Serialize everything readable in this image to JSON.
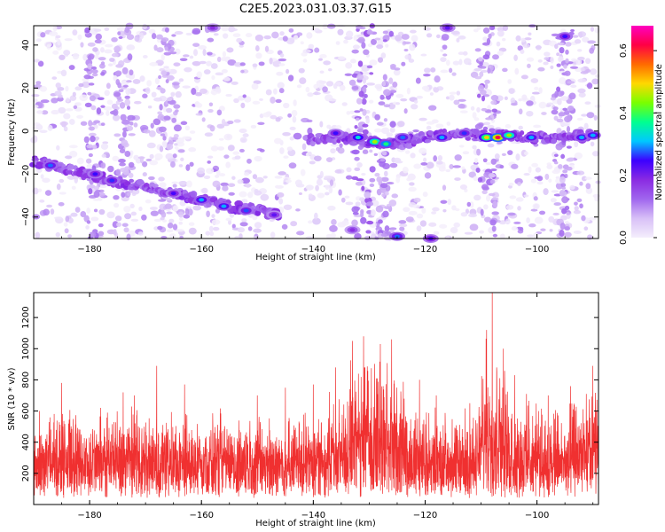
{
  "title": "C2E5.2023.031.03.37.G15",
  "chart_data": [
    {
      "type": "heatmap",
      "xlabel": "Height of straight line (km)",
      "ylabel": "Frequency (Hz)",
      "xlim": [
        -190,
        -89
      ],
      "ylim": [
        -50,
        49
      ],
      "xticks": [
        -180,
        -160,
        -140,
        -120,
        -100
      ],
      "yticks": [
        -40,
        -20,
        0,
        20,
        40
      ],
      "colorbar": {
        "label": "Normalized spectral amplitude",
        "range": [
          0,
          0.68
        ],
        "ticks": [
          0.0,
          0.2,
          0.4,
          0.6
        ],
        "tick_labels": [
          "0.0",
          "0.2",
          "0.4",
          "0.6"
        ],
        "colormap": [
          "#f4eefc",
          "#d8c0f7",
          "#a066ee",
          "#8a2be2",
          "#3c00ff",
          "#00c8ff",
          "#00ff90",
          "#7aff00",
          "#ffd800",
          "#ff6a00",
          "#ff0044",
          "#ff00c0"
        ]
      },
      "ridge": [
        {
          "x": -190,
          "y": -14
        },
        {
          "x": -185,
          "y": -17
        },
        {
          "x": -180,
          "y": -20
        },
        {
          "x": -175,
          "y": -24
        },
        {
          "x": -170,
          "y": -26
        },
        {
          "x": -165,
          "y": -29
        },
        {
          "x": -160,
          "y": -32
        },
        {
          "x": -155,
          "y": -35
        },
        {
          "x": -150,
          "y": -37
        },
        {
          "x": -146,
          "y": -39
        },
        {
          "x": -141,
          "y": -4
        },
        {
          "x": -135,
          "y": -3
        },
        {
          "x": -130,
          "y": -5
        },
        {
          "x": -125,
          "y": -6
        },
        {
          "x": -120,
          "y": -3
        },
        {
          "x": -115,
          "y": -1
        },
        {
          "x": -110,
          "y": -2
        },
        {
          "x": -105,
          "y": -2
        },
        {
          "x": -100,
          "y": -3
        },
        {
          "x": -95,
          "y": -3
        },
        {
          "x": -90,
          "y": -2
        }
      ],
      "hot_spots": [
        {
          "x": -187,
          "y": -16,
          "a": 0.28
        },
        {
          "x": -179,
          "y": -20,
          "a": 0.25
        },
        {
          "x": -176,
          "y": -23,
          "a": 0.26
        },
        {
          "x": -165,
          "y": -29,
          "a": 0.24
        },
        {
          "x": -160,
          "y": -32,
          "a": 0.3
        },
        {
          "x": -156,
          "y": -35,
          "a": 0.3
        },
        {
          "x": -152,
          "y": -37,
          "a": 0.27
        },
        {
          "x": -147,
          "y": -39,
          "a": 0.22
        },
        {
          "x": -136,
          "y": -1,
          "a": 0.25
        },
        {
          "x": -132,
          "y": -3,
          "a": 0.33
        },
        {
          "x": -129,
          "y": -5,
          "a": 0.45
        },
        {
          "x": -127,
          "y": -6,
          "a": 0.38
        },
        {
          "x": -124,
          "y": -3,
          "a": 0.28
        },
        {
          "x": -117,
          "y": -3,
          "a": 0.3
        },
        {
          "x": -113,
          "y": -1,
          "a": 0.26
        },
        {
          "x": -109,
          "y": -3,
          "a": 0.5
        },
        {
          "x": -107,
          "y": -3,
          "a": 0.62
        },
        {
          "x": -105,
          "y": -2,
          "a": 0.45
        },
        {
          "x": -101,
          "y": -3,
          "a": 0.3
        },
        {
          "x": -92,
          "y": -3,
          "a": 0.3
        },
        {
          "x": -90,
          "y": -2,
          "a": 0.3
        },
        {
          "x": -95,
          "y": 44,
          "a": 0.25
        },
        {
          "x": -125,
          "y": -49,
          "a": 0.28
        },
        {
          "x": -119,
          "y": -50,
          "a": 0.24
        },
        {
          "x": -133,
          "y": -46,
          "a": 0.18
        },
        {
          "x": -158,
          "y": 48,
          "a": 0.18
        },
        {
          "x": -116,
          "y": 48,
          "a": 0.22
        }
      ],
      "vertical_bands": [
        {
          "x": -179,
          "a": 0.1
        },
        {
          "x": -174,
          "a": 0.09
        },
        {
          "x": -166,
          "a": 0.08
        },
        {
          "x": -131,
          "a": 0.12
        },
        {
          "x": -127,
          "a": 0.1
        },
        {
          "x": -109,
          "a": 0.11
        },
        {
          "x": -95,
          "a": 0.1
        }
      ]
    },
    {
      "type": "line",
      "xlabel": "Height of straight line (km)",
      "ylabel": "SNR (10 * v/v)",
      "xlim": [
        -190,
        -89
      ],
      "ylim": [
        0,
        1360
      ],
      "xticks": [
        -180,
        -160,
        -140,
        -120,
        -100
      ],
      "yticks": [
        200,
        400,
        600,
        800,
        1000,
        1200
      ],
      "color": "#f03030",
      "peaks": [
        {
          "x": -189,
          "y": 600
        },
        {
          "x": -185,
          "y": 780
        },
        {
          "x": -174,
          "y": 720
        },
        {
          "x": -172,
          "y": 700
        },
        {
          "x": -168,
          "y": 890
        },
        {
          "x": -163,
          "y": 770
        },
        {
          "x": -150,
          "y": 700
        },
        {
          "x": -145,
          "y": 750
        },
        {
          "x": -140,
          "y": 770
        },
        {
          "x": -136,
          "y": 880
        },
        {
          "x": -133,
          "y": 1050
        },
        {
          "x": -131,
          "y": 1080
        },
        {
          "x": -128,
          "y": 1030
        },
        {
          "x": -126,
          "y": 1060
        },
        {
          "x": -121,
          "y": 800
        },
        {
          "x": -118,
          "y": 700
        },
        {
          "x": -112,
          "y": 650
        },
        {
          "x": -109,
          "y": 1120
        },
        {
          "x": -108,
          "y": 1360
        },
        {
          "x": -106,
          "y": 1000
        },
        {
          "x": -104,
          "y": 830
        },
        {
          "x": -98,
          "y": 700
        },
        {
          "x": -94,
          "y": 760
        },
        {
          "x": -90,
          "y": 890
        }
      ],
      "envelope": [
        {
          "x": -190,
          "y": 330
        },
        {
          "x": -185,
          "y": 360
        },
        {
          "x": -180,
          "y": 330
        },
        {
          "x": -175,
          "y": 380
        },
        {
          "x": -170,
          "y": 340
        },
        {
          "x": -165,
          "y": 330
        },
        {
          "x": -160,
          "y": 340
        },
        {
          "x": -155,
          "y": 330
        },
        {
          "x": -150,
          "y": 340
        },
        {
          "x": -145,
          "y": 330
        },
        {
          "x": -140,
          "y": 350
        },
        {
          "x": -135,
          "y": 420
        },
        {
          "x": -132,
          "y": 560
        },
        {
          "x": -129,
          "y": 580
        },
        {
          "x": -126,
          "y": 560
        },
        {
          "x": -123,
          "y": 420
        },
        {
          "x": -120,
          "y": 350
        },
        {
          "x": -115,
          "y": 330
        },
        {
          "x": -111,
          "y": 340
        },
        {
          "x": -109,
          "y": 600
        },
        {
          "x": -107,
          "y": 620
        },
        {
          "x": -105,
          "y": 430
        },
        {
          "x": -100,
          "y": 360
        },
        {
          "x": -95,
          "y": 350
        },
        {
          "x": -90,
          "y": 440
        },
        {
          "x": -89,
          "y": 420
        }
      ]
    }
  ]
}
